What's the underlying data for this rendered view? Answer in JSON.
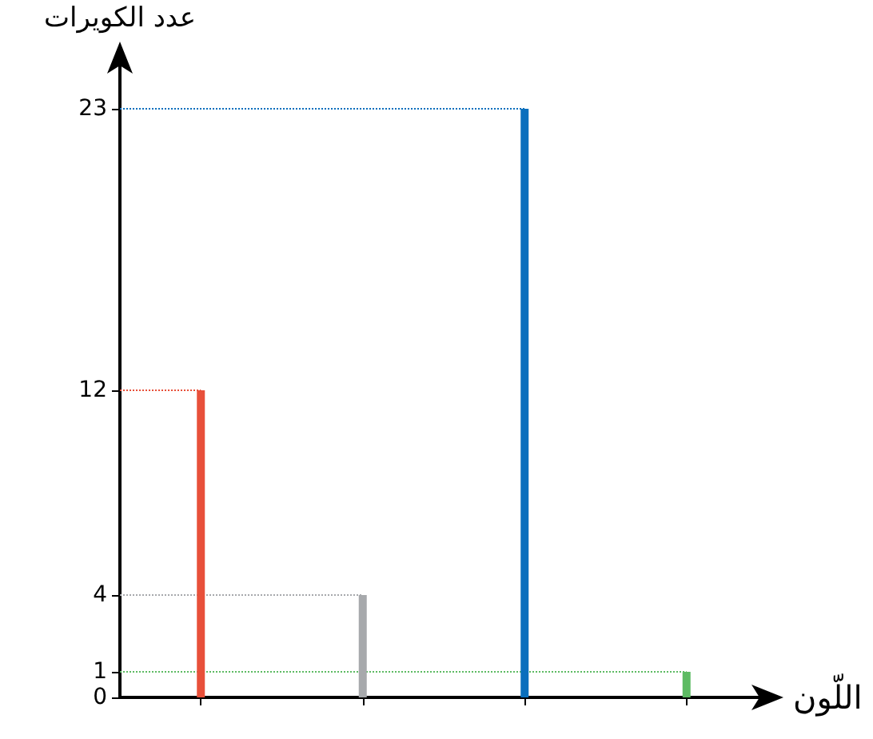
{
  "chart_data": {
    "type": "bar",
    "xlabel": "اللّون",
    "ylabel": "عدد الكويرات",
    "categories": [
      null,
      null,
      null,
      null
    ],
    "values": [
      12,
      4,
      23,
      1
    ],
    "colors": [
      "#e8503a",
      "#a7a9ac",
      "#0a6fbd",
      "#5dbb63"
    ],
    "ylim": [
      0,
      25
    ],
    "yticks": [
      0,
      1,
      4,
      12,
      23
    ],
    "grid": false,
    "ref_lines": [
      {
        "axis": "y",
        "value": 12,
        "color": "#e8503a",
        "line_style": "dotted"
      },
      {
        "axis": "y",
        "value": 4,
        "color": "#a7a9ac",
        "line_style": "dotted"
      },
      {
        "axis": "y",
        "value": 23,
        "color": "#0a6fbd",
        "line_style": "dotted"
      },
      {
        "axis": "y",
        "value": 1,
        "color": "#5dbb63",
        "line_style": "dotted"
      }
    ]
  }
}
